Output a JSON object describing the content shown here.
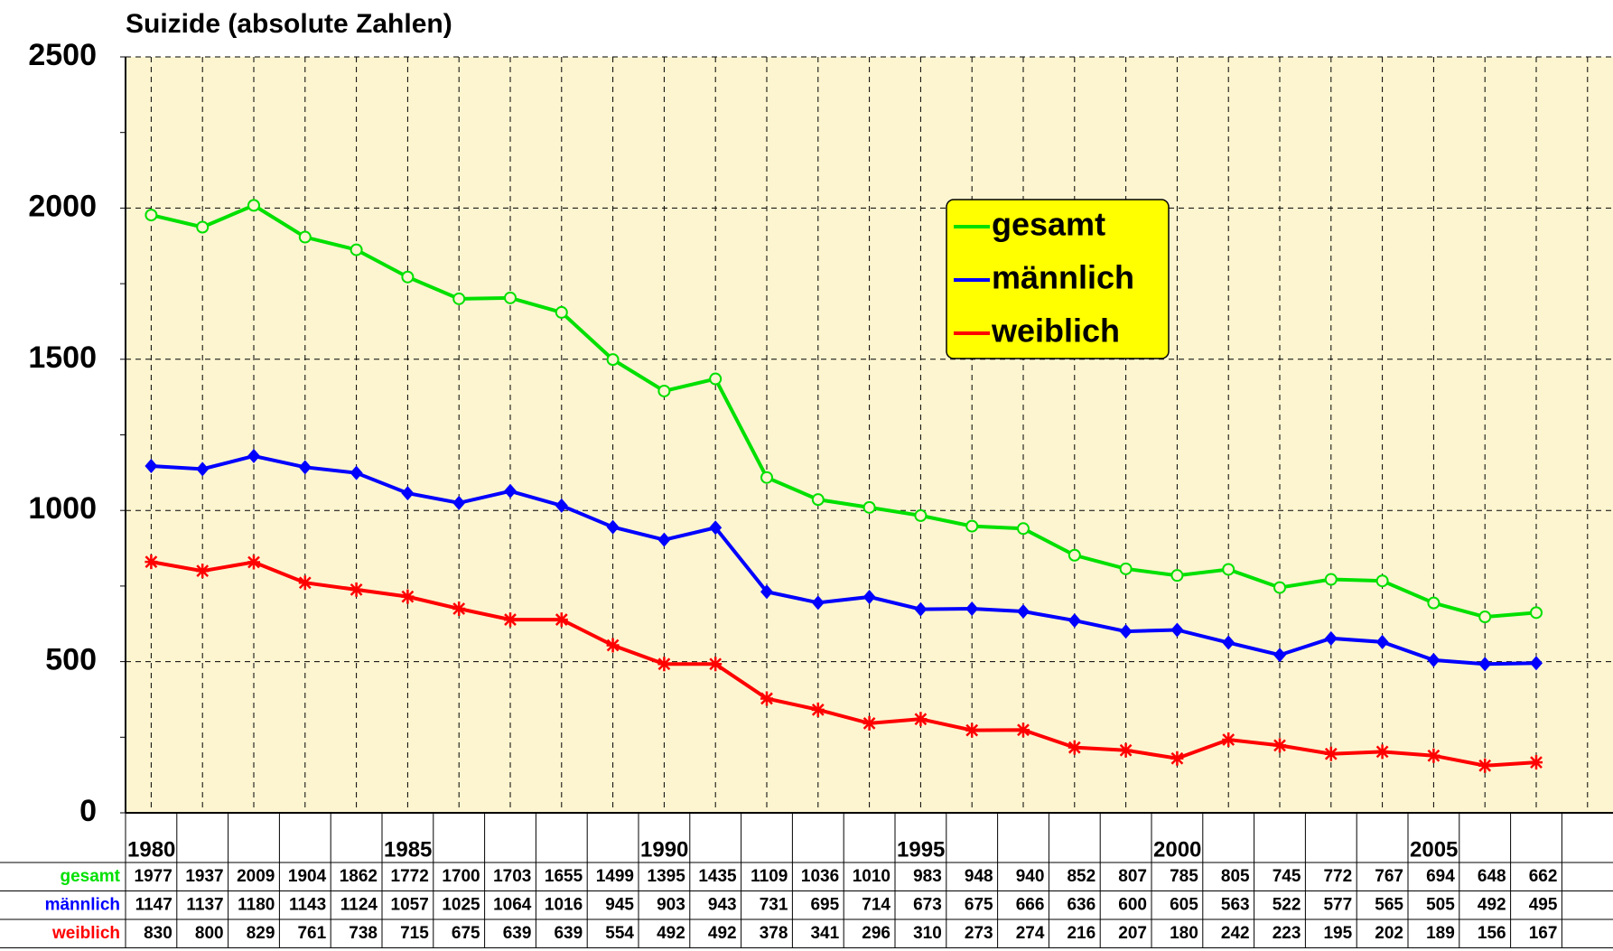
{
  "chart_data": {
    "type": "line",
    "title": "Suizide (absolute Zahlen)",
    "categories": [
      "1980",
      null,
      null,
      null,
      null,
      "1985",
      null,
      null,
      null,
      null,
      "1990",
      null,
      null,
      null,
      null,
      "1995",
      null,
      null,
      null,
      null,
      "2000",
      null,
      null,
      null,
      null,
      "2005",
      null,
      null,
      null
    ],
    "series": [
      {
        "name": "gesamt",
        "color": "#00e000",
        "values": [
          1977,
          1937,
          2009,
          1904,
          1862,
          1772,
          1700,
          1703,
          1655,
          1499,
          1395,
          1435,
          1109,
          1036,
          1010,
          983,
          948,
          940,
          852,
          807,
          785,
          805,
          745,
          772,
          767,
          694,
          648,
          662,
          null
        ]
      },
      {
        "name": "männlich",
        "color": "#0000ff",
        "values": [
          1147,
          1137,
          1180,
          1143,
          1124,
          1057,
          1025,
          1064,
          1016,
          945,
          903,
          943,
          731,
          695,
          714,
          673,
          675,
          666,
          636,
          600,
          605,
          563,
          522,
          577,
          565,
          505,
          492,
          495,
          null
        ]
      },
      {
        "name": "weiblich",
        "color": "#ff0000",
        "values": [
          830,
          800,
          829,
          761,
          738,
          715,
          675,
          639,
          639,
          554,
          492,
          492,
          378,
          341,
          296,
          310,
          273,
          274,
          216,
          207,
          180,
          242,
          223,
          195,
          202,
          189,
          156,
          167,
          null
        ]
      }
    ],
    "ylim": [
      0,
      2500
    ],
    "yticks": [
      0,
      500,
      1000,
      1500,
      2000,
      2500
    ],
    "grid": true
  }
}
